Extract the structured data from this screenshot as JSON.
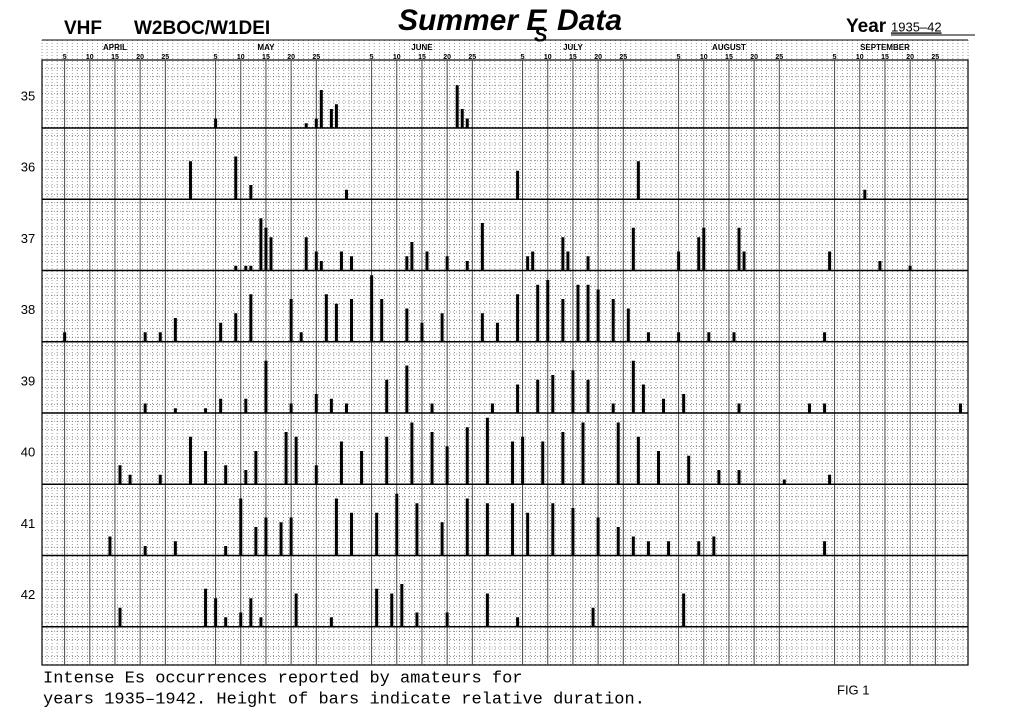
{
  "chart_data": {
    "type": "bar",
    "band": "VHF",
    "callsigns": "W2BOC/W1DEI",
    "title": "Summer E",
    "title_subscript": "S",
    "title_end": "Data",
    "year_label": "Year",
    "year_range": "1935–42",
    "months": [
      "APRIL",
      "MAY",
      "JUNE",
      "JULY",
      "AUGUST",
      "SEPTEMBER"
    ],
    "xlim": [
      1,
      184
    ],
    "xticks": [
      {
        "value": 5,
        "label": "5"
      },
      {
        "value": 10,
        "label": "10"
      },
      {
        "value": 15,
        "label": "15"
      },
      {
        "value": 20,
        "label": "20"
      },
      {
        "value": 25,
        "label": "25"
      },
      {
        "value": 35,
        "label": "5"
      },
      {
        "value": 40,
        "label": "10"
      },
      {
        "value": 45,
        "label": "15"
      },
      {
        "value": 50,
        "label": "20"
      },
      {
        "value": 55,
        "label": "25"
      },
      {
        "value": 66,
        "label": "5"
      },
      {
        "value": 71,
        "label": "10"
      },
      {
        "value": 76,
        "label": "15"
      },
      {
        "value": 81,
        "label": "20"
      },
      {
        "value": 86,
        "label": "25"
      },
      {
        "value": 96,
        "label": "5"
      },
      {
        "value": 101,
        "label": "10"
      },
      {
        "value": 106,
        "label": "15"
      },
      {
        "value": 111,
        "label": "20"
      },
      {
        "value": 116,
        "label": "25"
      },
      {
        "value": 127,
        "label": "5"
      },
      {
        "value": 132,
        "label": "10"
      },
      {
        "value": 137,
        "label": "15"
      },
      {
        "value": 142,
        "label": "20"
      },
      {
        "value": 147,
        "label": "25"
      },
      {
        "value": 158,
        "label": "5"
      },
      {
        "value": 163,
        "label": "10"
      },
      {
        "value": 168,
        "label": "15"
      },
      {
        "value": 173,
        "label": "20"
      },
      {
        "value": 178,
        "label": "25"
      }
    ],
    "ylim": [
      0,
      15
    ],
    "series": [
      {
        "name": "35",
        "color": "#000000",
        "x": [
          35,
          53,
          55,
          56,
          58,
          59,
          83,
          84,
          85
        ],
        "values": [
          2,
          1,
          2,
          8,
          4,
          5,
          9,
          4,
          2
        ]
      },
      {
        "name": "36",
        "color": "#000000",
        "x": [
          30,
          39,
          42,
          61,
          95,
          119,
          164
        ],
        "values": [
          8,
          9,
          3,
          2,
          6,
          8,
          2
        ]
      },
      {
        "name": "37",
        "color": "#000000",
        "x": [
          39,
          41,
          42,
          44,
          45,
          46,
          53,
          55,
          56,
          60,
          62,
          73,
          74,
          77,
          81,
          85,
          88,
          97,
          98,
          104,
          105,
          109,
          118,
          127,
          131,
          132,
          139,
          140,
          157,
          167,
          173
        ],
        "values": [
          1,
          1,
          1,
          11,
          9,
          7,
          7,
          4,
          2,
          4,
          3,
          3,
          6,
          4,
          3,
          2,
          10,
          3,
          4,
          7,
          4,
          3,
          9,
          4,
          7,
          9,
          9,
          4,
          4,
          2,
          1
        ]
      },
      {
        "name": "38",
        "color": "#000000",
        "x": [
          5,
          21,
          24,
          27,
          36,
          39,
          42,
          50,
          52,
          57,
          59,
          62,
          66,
          68,
          73,
          76,
          80,
          88,
          91,
          95,
          99,
          101,
          104,
          107,
          109,
          111,
          114,
          117,
          121,
          127,
          133,
          138,
          156
        ],
        "values": [
          2,
          2,
          2,
          5,
          4,
          6,
          10,
          9,
          2,
          10,
          8,
          9,
          14,
          9,
          7,
          4,
          6,
          6,
          4,
          10,
          12,
          13,
          9,
          12,
          12,
          11,
          9,
          7,
          2,
          2,
          2,
          2,
          2
        ]
      },
      {
        "name": "39",
        "color": "#000000",
        "x": [
          21,
          27,
          33,
          36,
          41,
          45,
          50,
          55,
          58,
          61,
          69,
          73,
          78,
          90,
          95,
          99,
          102,
          106,
          109,
          114,
          118,
          120,
          124,
          128,
          139,
          153,
          156,
          183
        ],
        "values": [
          2,
          1,
          1,
          3,
          3,
          11,
          2,
          4,
          3,
          2,
          7,
          10,
          2,
          2,
          6,
          7,
          8,
          9,
          7,
          2,
          11,
          6,
          3,
          4,
          2,
          2,
          2,
          2
        ]
      },
      {
        "name": "40",
        "color": "#000000",
        "x": [
          16,
          18,
          24,
          30,
          33,
          37,
          41,
          43,
          49,
          51,
          55,
          60,
          64,
          69,
          74,
          78,
          81,
          85,
          89,
          94,
          96,
          100,
          104,
          108,
          115,
          119,
          123,
          129,
          135,
          139,
          148,
          157
        ],
        "values": [
          4,
          2,
          2,
          10,
          7,
          4,
          3,
          7,
          11,
          10,
          4,
          9,
          7,
          10,
          13,
          11,
          8,
          12,
          14,
          9,
          10,
          9,
          11,
          13,
          13,
          10,
          7,
          6,
          3,
          3,
          1,
          2
        ]
      },
      {
        "name": "41",
        "color": "#000000",
        "x": [
          14,
          21,
          27,
          37,
          40,
          43,
          45,
          48,
          50,
          59,
          62,
          67,
          71,
          75,
          80,
          85,
          89,
          94,
          97,
          102,
          106,
          111,
          115,
          118,
          121,
          125,
          131,
          134,
          156
        ],
        "values": [
          4,
          2,
          3,
          2,
          12,
          6,
          8,
          7,
          8,
          12,
          9,
          9,
          13,
          11,
          7,
          12,
          11,
          11,
          9,
          11,
          10,
          8,
          6,
          4,
          3,
          3,
          3,
          4,
          3
        ]
      },
      {
        "name": "42",
        "color": "#000000",
        "x": [
          16,
          33,
          35,
          37,
          40,
          42,
          44,
          51,
          58,
          67,
          70,
          72,
          75,
          81,
          89,
          95,
          110,
          128
        ],
        "values": [
          4,
          8,
          6,
          2,
          3,
          6,
          2,
          7,
          2,
          8,
          7,
          9,
          3,
          3,
          7,
          2,
          4,
          7
        ]
      }
    ],
    "caption": [
      "Intense Es occurrences reported by amateurs for",
      "years 1935–1942.  Height of bars indicate relative duration."
    ],
    "figure_label": "FIG 1"
  }
}
